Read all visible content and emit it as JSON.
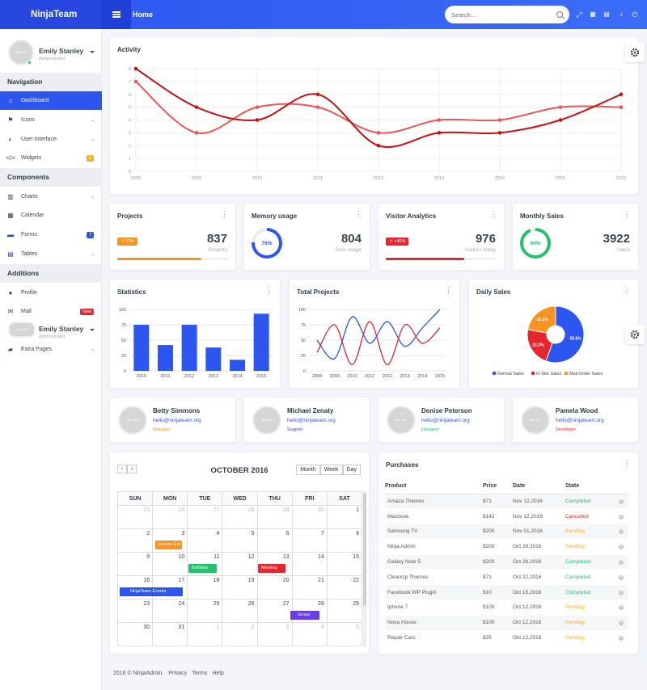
{
  "brand": "NinjaTeam",
  "header": {
    "title": "Home",
    "search_placeholder": "Search..."
  },
  "user": {
    "name": "Emily Stanley",
    "role": "Administrator",
    "avatar_text": "96 x 96"
  },
  "sidebar": {
    "navigation_heading": "Navigation",
    "components_heading": "Components",
    "additions_heading": "Additions",
    "items": [
      {
        "label": "Dashboard",
        "icon": "home-icon"
      },
      {
        "label": "Icons",
        "icon": "flag-icon"
      },
      {
        "label": "User Interface",
        "icon": "contrast-icon"
      },
      {
        "label": "Widgets",
        "icon": "code-icon",
        "badge": "5"
      },
      {
        "label": "Charts",
        "icon": "bar-chart-icon"
      },
      {
        "label": "Calendar",
        "icon": "calendar-icon"
      },
      {
        "label": "Forms",
        "icon": "form-icon",
        "badge": "7"
      },
      {
        "label": "Tables",
        "icon": "table-icon"
      },
      {
        "label": "Profile",
        "icon": "user-icon"
      },
      {
        "label": "Mail",
        "icon": "mail-icon",
        "badge": "New"
      },
      {
        "label": "Extra Pages",
        "icon": "folder-icon"
      }
    ]
  },
  "activity": {
    "title": "Activity",
    "chart_data": {
      "type": "line",
      "x": [
        "2008",
        "2009",
        "2010",
        "2011",
        "2012",
        "2013",
        "2014",
        "2015",
        "2016"
      ],
      "ylim": [
        0,
        8
      ],
      "yticks": [
        "0",
        "1",
        "2",
        "3",
        "4",
        "5",
        "6",
        "7",
        "8"
      ],
      "series": [
        {
          "values": [
            8,
            5,
            4,
            6,
            2,
            3,
            3,
            4,
            6
          ],
          "color": "#cc1010"
        },
        {
          "values": [
            7,
            3,
            5,
            5,
            3,
            4,
            4,
            5,
            5
          ],
          "color": "#ee5555"
        }
      ]
    }
  },
  "stats": [
    {
      "title": "Projects",
      "value": "837",
      "sub": "Projects",
      "chip": "52%",
      "chip_color": "#f7931e",
      "progress": 0.75,
      "bar_color": "#f7931e"
    },
    {
      "title": "Memory usage",
      "value": "804",
      "sub": "Disk usage",
      "ring": "76%",
      "ring_value": 0.76,
      "ring_color": "#2d55f0"
    },
    {
      "title": "Visitor Analytics",
      "value": "976",
      "sub": "Visitors today",
      "chip": "+40%",
      "chip_color": "#e6252d",
      "progress": 0.7,
      "bar_color": "#e6252d"
    },
    {
      "title": "Monthly Sales",
      "value": "3922",
      "sub": "Sales",
      "ring": "94%",
      "ring_value": 0.94,
      "ring_color": "#23c16b"
    }
  ],
  "statistics": {
    "title": "Statistics",
    "chart_data": {
      "type": "bar",
      "categories": [
        "2010",
        "2011",
        "2012",
        "2013",
        "2014",
        "2015"
      ],
      "values": [
        75,
        42,
        75,
        38,
        18,
        93
      ],
      "ylim": [
        0,
        100
      ],
      "yticks": [
        "0",
        "25",
        "50",
        "75",
        "100"
      ],
      "color": "#2d55f0"
    }
  },
  "total_projects": {
    "title": "Total Projects",
    "chart_data": {
      "type": "line",
      "x": [
        "2008",
        "2009",
        "2010",
        "2011",
        "2012",
        "2013",
        "2014",
        "2015"
      ],
      "ylim": [
        0,
        100
      ],
      "yticks": [
        "0",
        "25",
        "50",
        "75",
        "100"
      ],
      "series": [
        {
          "values": [
            50,
            20,
            88,
            45,
            80,
            40,
            70,
            100
          ],
          "color": "#2d55f0"
        },
        {
          "values": [
            30,
            75,
            10,
            80,
            10,
            75,
            45,
            70
          ],
          "color": "#e6252d"
        }
      ]
    }
  },
  "daily_sales": {
    "title": "Daily Sales",
    "chart_data": {
      "type": "pie",
      "categories": [
        "Normal Sales",
        "In-Site Sales",
        "Mail-Order Sales"
      ],
      "values": [
        55.6,
        22.2,
        22.2
      ],
      "labels": [
        "55.6%",
        "22.2%",
        "22.2%"
      ],
      "colors": [
        "#2d55f0",
        "#e6252d",
        "#f7931e"
      ]
    }
  },
  "people": [
    {
      "name": "Betty Simmons",
      "email": "hello@ninjateam.org",
      "role": "Manager",
      "role_color": "#f7931e",
      "avatar_text": "96 x 96"
    },
    {
      "name": "Michael Zenaty",
      "email": "hello@ninjateam.org",
      "role": "Support",
      "role_color": "#6a2ad8",
      "avatar_text": "96 x 96"
    },
    {
      "name": "Denise Peterson",
      "email": "hello@ninjateam.org",
      "role": "Designer",
      "role_color": "#23c16b",
      "avatar_text": "96 x 96"
    },
    {
      "name": "Pamela Wood",
      "email": "hello@ninjateam.org",
      "role": "Developer",
      "role_color": "#e6252d",
      "avatar_text": "96 x 96"
    }
  ],
  "calendar": {
    "title": "OCTOBER 2016",
    "prev": "‹",
    "next": "›",
    "views": [
      "Month",
      "Week",
      "Day"
    ],
    "days": [
      "SUN",
      "MON",
      "TUE",
      "WED",
      "THU",
      "FRI",
      "SAT"
    ],
    "weeks": [
      [
        [
          "25",
          true
        ],
        [
          "26",
          true
        ],
        [
          "27",
          true
        ],
        [
          "28",
          true
        ],
        [
          "29",
          true
        ],
        [
          "30",
          true
        ],
        [
          "1",
          false
        ]
      ],
      [
        [
          "2",
          false
        ],
        [
          "3",
          false
        ],
        [
          "4",
          false
        ],
        [
          "5",
          false
        ],
        [
          "6",
          false
        ],
        [
          "7",
          false
        ],
        [
          "8",
          false
        ]
      ],
      [
        [
          "9",
          false
        ],
        [
          "10",
          false
        ],
        [
          "11",
          false
        ],
        [
          "12",
          false
        ],
        [
          "13",
          false
        ],
        [
          "14",
          false
        ],
        [
          "15",
          false
        ]
      ],
      [
        [
          "16",
          false
        ],
        [
          "17",
          false
        ],
        [
          "18",
          false
        ],
        [
          "19",
          false
        ],
        [
          "20",
          false
        ],
        [
          "21",
          false
        ],
        [
          "22",
          false
        ]
      ],
      [
        [
          "23",
          false
        ],
        [
          "24",
          false
        ],
        [
          "25",
          false
        ],
        [
          "26",
          false
        ],
        [
          "27",
          false
        ],
        [
          "28",
          false
        ],
        [
          "29",
          false
        ]
      ],
      [
        [
          "30",
          false
        ],
        [
          "31",
          false
        ],
        [
          "1",
          true
        ],
        [
          "2",
          true
        ],
        [
          "3",
          true
        ],
        [
          "4",
          true
        ],
        [
          "5",
          true
        ]
      ]
    ],
    "events": [
      {
        "label": "Events Gro",
        "color": "#f7931e"
      },
      {
        "label": "Birthday",
        "color": "#23c16b"
      },
      {
        "label": "Meeting",
        "color": "#e6252d"
      },
      {
        "label": "NinjaTeam Events",
        "color": "#2d55f0"
      },
      {
        "label": "Group",
        "color": "#6a3ee0"
      }
    ]
  },
  "purchases": {
    "title": "Purchases",
    "columns": [
      "Product",
      "Price",
      "Date",
      "State"
    ],
    "rows": [
      [
        "Amaza Themes",
        "$71",
        "Nov 12,2016",
        "Completed"
      ],
      [
        "Macbook",
        "$142",
        "Nov 12,2016",
        "Cancelled"
      ],
      [
        "Samsung TV",
        "$200",
        "Nov 01,2016",
        "Pending"
      ],
      [
        "Ninja Admin",
        "$200",
        "Oct 28,2016",
        "Pending"
      ],
      [
        "Galaxy Note 5",
        "$200",
        "Oct 28,2016",
        "Completed"
      ],
      [
        "CleanUp Themes",
        "$71",
        "Oct 22,2016",
        "Completed"
      ],
      [
        "Facebook WP Plugin",
        "$10",
        "Oct 15,2016",
        "Completed"
      ],
      [
        "Iphone 7",
        "$100",
        "Oct 12,2016",
        "Pending"
      ],
      [
        "Nova House",
        "$100",
        "Oct 12,2016",
        "Pending"
      ],
      [
        "Repair Cars",
        "$35",
        "Oct 12,2016",
        "Pending"
      ]
    ],
    "state_colors": {
      "Completed": "#23c16b",
      "Cancelled": "#e6252d",
      "Pending": "#f7b21e"
    }
  },
  "footer": {
    "copyright": "2016 © NinjaAdmin.",
    "links": [
      "Privacy",
      "Terms",
      "Help"
    ]
  }
}
